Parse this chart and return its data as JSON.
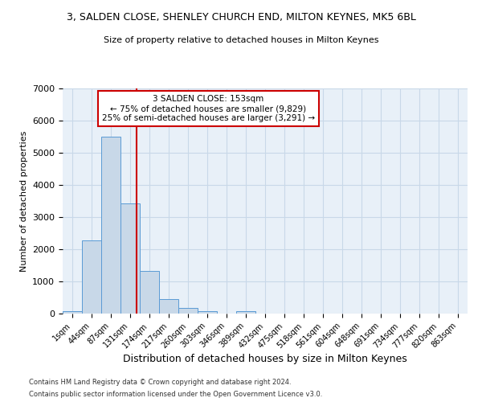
{
  "title1": "3, SALDEN CLOSE, SHENLEY CHURCH END, MILTON KEYNES, MK5 6BL",
  "title2": "Size of property relative to detached houses in Milton Keynes",
  "xlabel": "Distribution of detached houses by size in Milton Keynes",
  "ylabel": "Number of detached properties",
  "bar_categories": [
    "1sqm",
    "44sqm",
    "87sqm",
    "131sqm",
    "174sqm",
    "217sqm",
    "260sqm",
    "303sqm",
    "346sqm",
    "389sqm",
    "432sqm",
    "475sqm",
    "518sqm",
    "561sqm",
    "604sqm",
    "648sqm",
    "691sqm",
    "734sqm",
    "777sqm",
    "820sqm",
    "863sqm"
  ],
  "bar_values": [
    80,
    2280,
    5500,
    3420,
    1320,
    460,
    165,
    80,
    0,
    80,
    0,
    0,
    0,
    0,
    0,
    0,
    0,
    0,
    0,
    0,
    0
  ],
  "bar_color": "#c8d8e8",
  "bar_edge_color": "#5b9bd5",
  "red_line_x": 3.35,
  "annotation_line1": "3 SALDEN CLOSE: 153sqm",
  "annotation_line2": "← 75% of detached houses are smaller (9,829)",
  "annotation_line3": "25% of semi-detached houses are larger (3,291) →",
  "annotation_box_color": "#ffffff",
  "annotation_box_edge": "#cc0000",
  "ylim": [
    0,
    7000
  ],
  "yticks": [
    0,
    1000,
    2000,
    3000,
    4000,
    5000,
    6000,
    7000
  ],
  "grid_color": "#c8d8e8",
  "bg_color": "#e8f0f8",
  "footer1": "Contains HM Land Registry data © Crown copyright and database right 2024.",
  "footer2": "Contains public sector information licensed under the Open Government Licence v3.0."
}
